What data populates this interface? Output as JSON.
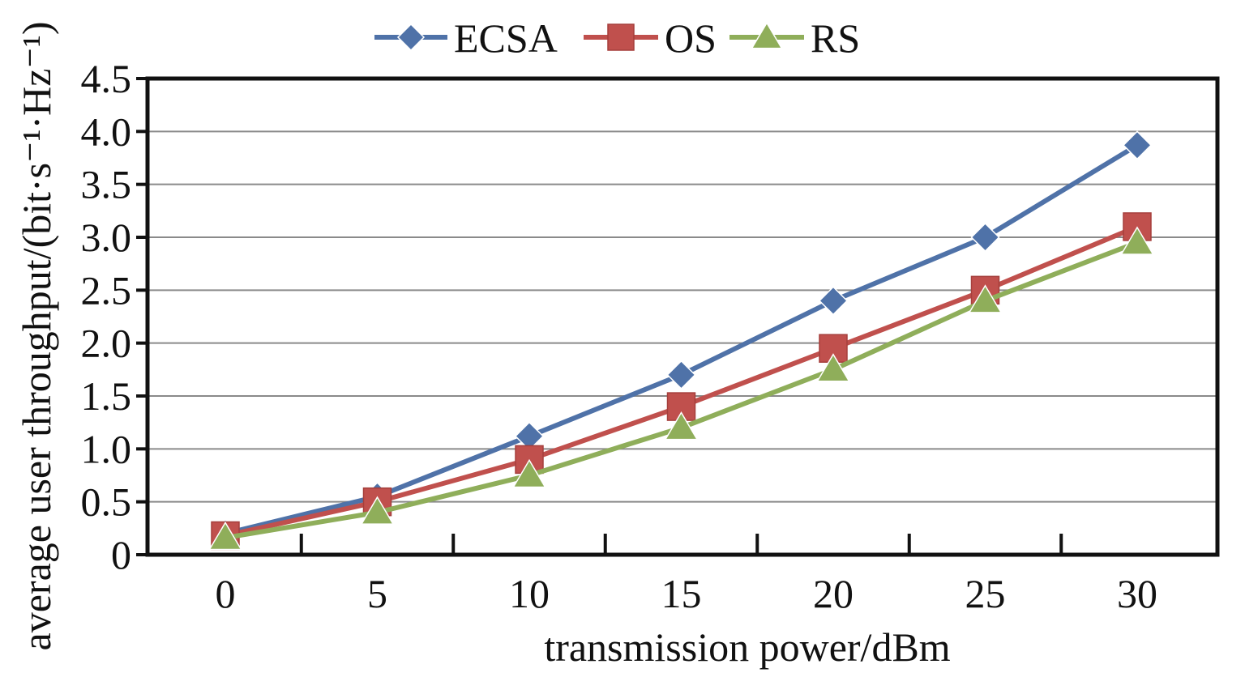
{
  "chart_data": {
    "type": "line",
    "x": [
      0,
      5,
      10,
      15,
      20,
      25,
      30
    ],
    "x_tick_labels": [
      "0",
      "5",
      "10",
      "15",
      "20",
      "25",
      "30"
    ],
    "y_tick_labels": [
      "0",
      "0.5",
      "1.0",
      "1.5",
      "2.0",
      "2.5",
      "3.0",
      "3.5",
      "4.0",
      "4.5"
    ],
    "xlabel": "transmission power/dBm",
    "ylabel": "average user throughput/(bit·s⁻¹·Hz⁻¹)",
    "xlim": [
      0,
      30
    ],
    "ylim": [
      0,
      4.5
    ],
    "grid": "horizontal",
    "legend_position": "top",
    "series": [
      {
        "name": "ECSA",
        "marker": "diamond",
        "color": "#4f72a8",
        "values": [
          0.2,
          0.55,
          1.12,
          1.7,
          2.4,
          3.0,
          3.87
        ]
      },
      {
        "name": "OS",
        "marker": "square",
        "color": "#c0504d",
        "values": [
          0.18,
          0.5,
          0.9,
          1.4,
          1.95,
          2.5,
          3.1
        ]
      },
      {
        "name": "RS",
        "marker": "triangle",
        "color": "#8fae5a",
        "values": [
          0.16,
          0.4,
          0.75,
          1.2,
          1.75,
          2.4,
          2.95
        ]
      }
    ]
  }
}
